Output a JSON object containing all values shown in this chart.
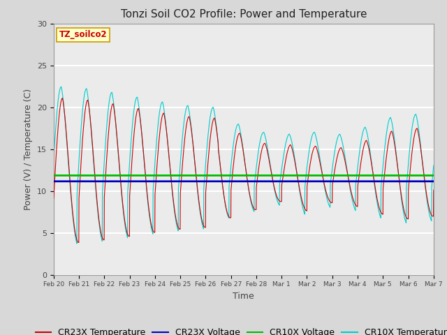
{
  "title": "Tonzi Soil CO2 Profile: Power and Temperature",
  "xlabel": "Time",
  "ylabel": "Power (V) / Temperature (C)",
  "ylim": [
    0,
    30
  ],
  "annotation_label": "TZ_soilco2",
  "annotation_color": "#cc0000",
  "annotation_bg": "#ffffcc",
  "annotation_border": "#cc9900",
  "cr23x_temp_color": "#cc0000",
  "cr23x_volt_color": "#0000bb",
  "cr10x_volt_color": "#00bb00",
  "cr10x_temp_color": "#00cccc",
  "cr23x_volt_level": 11.15,
  "cr10x_volt_level": 11.85,
  "bg_color": "#d8d8d8",
  "inner_bg_color": "#ebebeb",
  "grid_color": "#ffffff",
  "tick_label_color": "#444444",
  "legend_fontsize": 9,
  "title_fontsize": 11,
  "axis_label_fontsize": 9
}
